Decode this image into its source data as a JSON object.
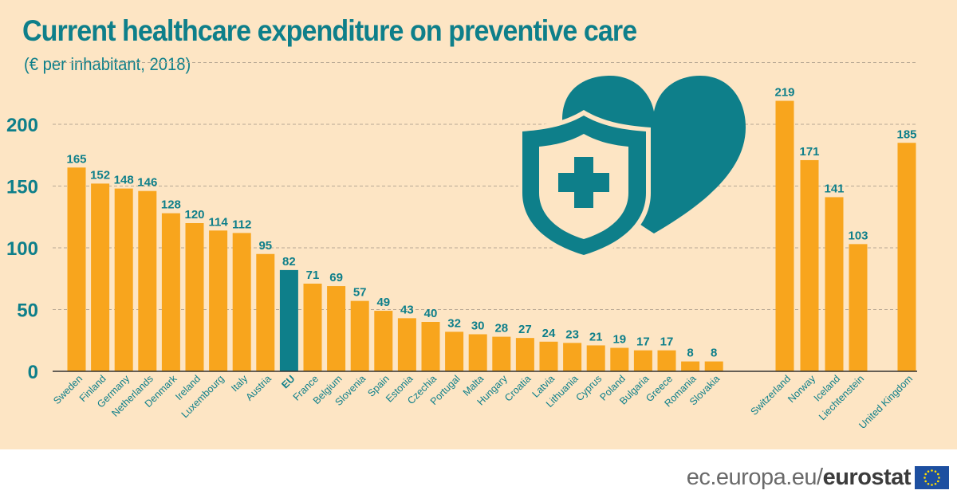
{
  "title": "Current healthcare expenditure on preventive care",
  "subtitle": "(€ per inhabitant, 2018)",
  "footer": {
    "site": "ec.europa.eu/",
    "brand": "eurostat"
  },
  "icons": [
    "heart-icon",
    "shield-icon",
    "medical-cross-icon",
    "eu-flag-icon"
  ],
  "colors": {
    "background": "#fde5c4",
    "bar": "#f8a51d",
    "eu_bar": "#0e7f8a",
    "text": "#0e7f8a"
  },
  "chart_data": {
    "type": "bar",
    "title": "Current healthcare expenditure on preventive care",
    "subtitle": "(€ per inhabitant, 2018)",
    "categories": [
      "Sweden",
      "Finland",
      "Germany",
      "Netherlands",
      "Denmark",
      "Ireland",
      "Luxembourg",
      "Italy",
      "Austria",
      "EU",
      "France",
      "Belgium",
      "Slovenia",
      "Spain",
      "Estonia",
      "Czechia",
      "Portugal",
      "Malta",
      "Hungary",
      "Croatia",
      "Latvia",
      "Lithuania",
      "Cyprus",
      "Poland",
      "Bulgaria",
      "Greece",
      "Romania",
      "Slovakia",
      "Switzerland",
      "Norway",
      "Iceland",
      "Liechtenstein",
      "United Kingdom"
    ],
    "values": [
      165,
      152,
      148,
      146,
      128,
      120,
      114,
      112,
      95,
      82,
      71,
      69,
      57,
      49,
      43,
      40,
      32,
      30,
      28,
      27,
      24,
      23,
      21,
      19,
      17,
      17,
      8,
      8,
      219,
      171,
      141,
      103,
      185
    ],
    "highlight": "EU",
    "groups": [
      [
        "Sweden",
        "Slovakia"
      ],
      [
        "Switzerland",
        "Liechtenstein"
      ],
      [
        "United Kingdom",
        "United Kingdom"
      ]
    ],
    "yticks": [
      0,
      50,
      100,
      150,
      200
    ],
    "ylim": [
      0,
      250
    ],
    "grid": true,
    "data_labels": true,
    "xlabel": "",
    "ylabel": ""
  }
}
